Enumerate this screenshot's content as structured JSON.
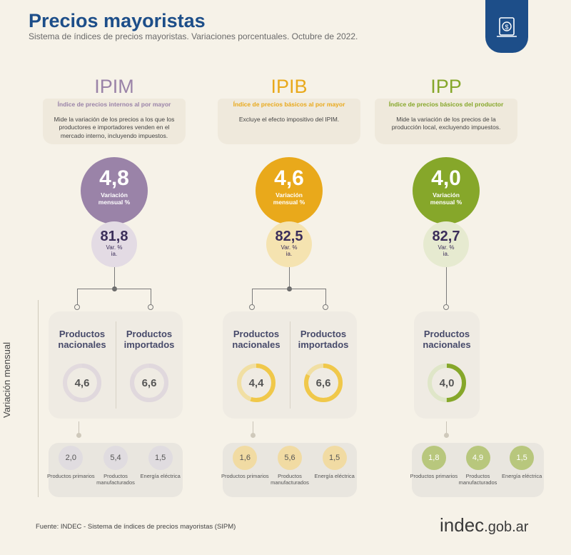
{
  "header": {
    "title": "Precios mayoristas",
    "subtitle": "Sistema de índices de precios mayoristas. Variaciones porcentuales. Octubre de 2022."
  },
  "badge_icon": "price-tag-icon",
  "vertical_label": "Variación mensual",
  "columns": [
    {
      "key": "IPIM",
      "color": "#9a83a8",
      "title": "IPIM",
      "tag": "Índice de precios internos al por mayor",
      "description": "Mide la variación de los precios a los que los productores e importadores venden en el mercado interno, incluyendo impuestos.",
      "monthly_value": "4,8",
      "monthly_label": "Variación mensual %",
      "annual_value": "81,8",
      "annual_label": "Var. % ia.",
      "products": [
        {
          "label": "Productos nacionales",
          "value": "4,6"
        },
        {
          "label": "Productos importados",
          "value": "6,6"
        }
      ],
      "sub": [
        {
          "value": "2,0",
          "label": "Productos primarios"
        },
        {
          "value": "5,4",
          "label": "Productos manufacturados"
        },
        {
          "value": "1,5",
          "label": "Energía eléctrica"
        }
      ]
    },
    {
      "key": "IPIB",
      "color": "#e9a91b",
      "title": "IPIB",
      "tag": "Índice de precios básicos al por mayor",
      "description": "Excluye el efecto impositivo del IPIM.",
      "monthly_value": "4,6",
      "monthly_label": "Variación mensual %",
      "annual_value": "82,5",
      "annual_label": "Var. % ia.",
      "products": [
        {
          "label": "Productos nacionales",
          "value": "4,4"
        },
        {
          "label": "Productos importados",
          "value": "6,6"
        }
      ],
      "sub": [
        {
          "value": "1,6",
          "label": "Productos primarios"
        },
        {
          "value": "5,6",
          "label": "Productos manufacturados"
        },
        {
          "value": "1,5",
          "label": "Energía eléctrica"
        }
      ]
    },
    {
      "key": "IPP",
      "color": "#86a72a",
      "title": "IPP",
      "tag": "Índice de precios básicos del productor",
      "description": "Mide la variación de los precios de la producción local, excluyendo impuestos.",
      "monthly_value": "4,0",
      "monthly_label": "Variación mensual %",
      "annual_value": "82,7",
      "annual_label": "Var. % ia.",
      "products": [
        {
          "label": "Productos nacionales",
          "value": "4,0"
        }
      ],
      "sub": [
        {
          "value": "1,8",
          "label": "Productos primarios"
        },
        {
          "value": "4,9",
          "label": "Productos manufacturados"
        },
        {
          "value": "1,5",
          "label": "Energía eléctrica"
        }
      ]
    }
  ],
  "source": "Fuente: INDEC - Sistema de índices de precios mayoristas (SIPM)",
  "logo": {
    "brand": "indec",
    "domain": ".gob.ar"
  }
}
